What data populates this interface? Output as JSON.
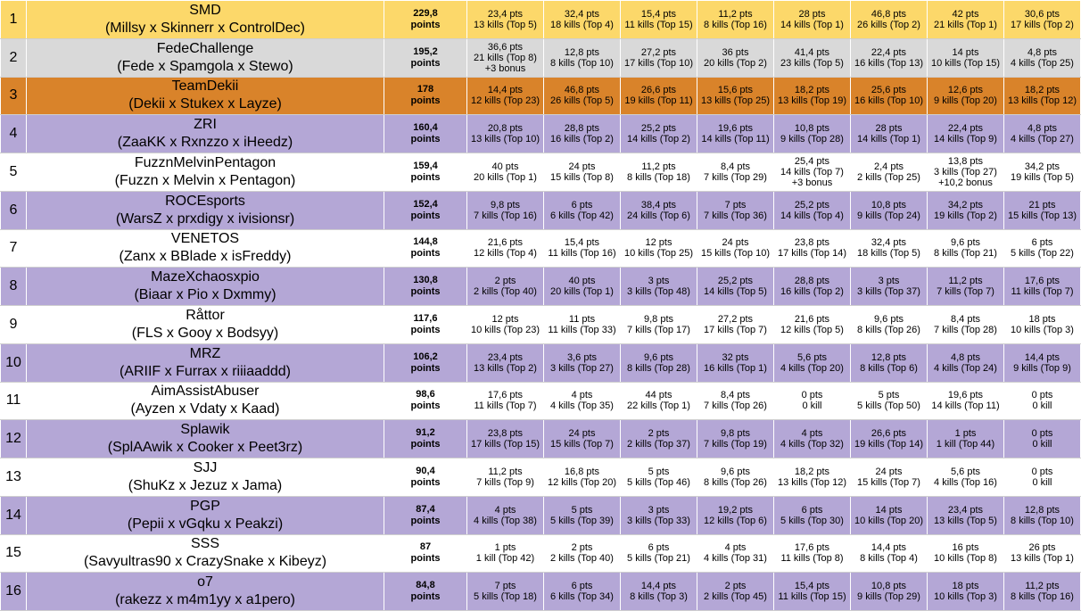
{
  "standings": [
    {
      "rank": "1",
      "name": "SMD",
      "players": "(Millsy x Skinnerr x ControlDec)",
      "total": "229,8",
      "total_label": "points",
      "style": "gold",
      "games": [
        {
          "pts": "23,4 pts",
          "kills": "13 kills (Top 5)"
        },
        {
          "pts": "32,4 pts",
          "kills": "18 kills (Top 4)"
        },
        {
          "pts": "15,4 pts",
          "kills": "11 kills (Top 15)"
        },
        {
          "pts": "11,2 pts",
          "kills": "8 kills (Top 16)"
        },
        {
          "pts": "28 pts",
          "kills": "14 kills (Top 1)"
        },
        {
          "pts": "46,8 pts",
          "kills": "26 kills (Top 2)"
        },
        {
          "pts": "42 pts",
          "kills": "21 kills (Top 1)"
        },
        {
          "pts": "30,6 pts",
          "kills": "17 kills (Top 2)"
        }
      ]
    },
    {
      "rank": "2",
      "name": "FedeChallenge",
      "players": "(Fede x Spamgola x Stewo)",
      "total": "195,2",
      "total_label": "points",
      "style": "silver",
      "games": [
        {
          "pts": "36,6 pts",
          "kills": "21 kills (Top 8)",
          "bonus": "+3 bonus"
        },
        {
          "pts": "12,8 pts",
          "kills": "8 kills (Top 10)"
        },
        {
          "pts": "27,2 pts",
          "kills": "17 kills (Top 10)"
        },
        {
          "pts": "36 pts",
          "kills": "20 kills (Top 2)"
        },
        {
          "pts": "41,4 pts",
          "kills": "23 kills (Top 5)"
        },
        {
          "pts": "22,4 pts",
          "kills": "16 kills (Top 13)"
        },
        {
          "pts": "14 pts",
          "kills": "10 kills (Top 15)"
        },
        {
          "pts": "4,8 pts",
          "kills": "4 kills (Top 25)"
        }
      ]
    },
    {
      "rank": "3",
      "name": "TeamDekii",
      "players": "(Dekii x Stukex x Layze)",
      "total": "178",
      "total_label": "points",
      "style": "bronze",
      "games": [
        {
          "pts": "14,4 pts",
          "kills": "12 kills (Top 23)"
        },
        {
          "pts": "46,8 pts",
          "kills": "26 kills (Top 5)"
        },
        {
          "pts": "26,6 pts",
          "kills": "19 kills (Top 11)"
        },
        {
          "pts": "15,6 pts",
          "kills": "13 kills (Top 25)"
        },
        {
          "pts": "18,2 pts",
          "kills": "13 kills (Top 19)"
        },
        {
          "pts": "25,6 pts",
          "kills": "16 kills (Top 10)"
        },
        {
          "pts": "12,6 pts",
          "kills": "9 kills (Top 20)"
        },
        {
          "pts": "18,2 pts",
          "kills": "13 kills (Top 12)"
        }
      ]
    },
    {
      "rank": "4",
      "name": "ZRI",
      "players": "(ZaaKK x Rxnzzo x iHeedz)",
      "total": "160,4",
      "total_label": "points",
      "style": "purple",
      "games": [
        {
          "pts": "20,8 pts",
          "kills": "13 kills (Top 10)"
        },
        {
          "pts": "28,8 pts",
          "kills": "16 kills (Top 2)"
        },
        {
          "pts": "25,2 pts",
          "kills": "14 kills (Top 2)"
        },
        {
          "pts": "19,6 pts",
          "kills": "14 kills (Top 11)"
        },
        {
          "pts": "10,8 pts",
          "kills": "9 kills (Top 28)"
        },
        {
          "pts": "28 pts",
          "kills": "14 kills (Top 1)"
        },
        {
          "pts": "22,4 pts",
          "kills": "14 kills (Top 9)"
        },
        {
          "pts": "4,8 pts",
          "kills": "4 kills (Top 27)"
        }
      ]
    },
    {
      "rank": "5",
      "name": "FuzznMelvinPentagon",
      "players": "(Fuzzn x Melvin x Pentagon)",
      "total": "159,4",
      "total_label": "points",
      "style": "white",
      "games": [
        {
          "pts": "40 pts",
          "kills": "20 kills (Top 1)"
        },
        {
          "pts": "24 pts",
          "kills": "15 kills (Top 8)"
        },
        {
          "pts": "11,2 pts",
          "kills": "8 kills (Top 18)"
        },
        {
          "pts": "8,4 pts",
          "kills": "7 kills (Top 29)"
        },
        {
          "pts": "25,4 pts",
          "kills": "14 kills (Top 7)",
          "bonus": "+3 bonus"
        },
        {
          "pts": "2,4 pts",
          "kills": "2 kills (Top 25)"
        },
        {
          "pts": "13,8 pts",
          "kills": "3 kills (Top 27)",
          "bonus": "+10,2 bonus"
        },
        {
          "pts": "34,2 pts",
          "kills": "19 kills (Top 5)"
        }
      ]
    },
    {
      "rank": "6",
      "name": "ROCEsports",
      "players": "(WarsZ x prxdigy x ivisionsr)",
      "total": "152,4",
      "total_label": "points",
      "style": "purple",
      "games": [
        {
          "pts": "9,8 pts",
          "kills": "7 kills (Top 16)"
        },
        {
          "pts": "6 pts",
          "kills": "6 kills (Top 42)"
        },
        {
          "pts": "38,4 pts",
          "kills": "24 kills (Top 6)"
        },
        {
          "pts": "7 pts",
          "kills": "7 kills (Top 36)"
        },
        {
          "pts": "25,2 pts",
          "kills": "14 kills (Top 4)"
        },
        {
          "pts": "10,8 pts",
          "kills": "9 kills (Top 24)"
        },
        {
          "pts": "34,2 pts",
          "kills": "19 kills (Top 2)"
        },
        {
          "pts": "21 pts",
          "kills": "15 kills (Top 13)"
        }
      ]
    },
    {
      "rank": "7",
      "name": "VENETOS",
      "players": "(Zanx x BBlade x isFreddy)",
      "total": "144,8",
      "total_label": "points",
      "style": "white",
      "games": [
        {
          "pts": "21,6 pts",
          "kills": "12 kills (Top 4)"
        },
        {
          "pts": "15,4 pts",
          "kills": "11 kills (Top 16)"
        },
        {
          "pts": "12 pts",
          "kills": "10 kills (Top 25)"
        },
        {
          "pts": "24 pts",
          "kills": "15 kills (Top 10)"
        },
        {
          "pts": "23,8 pts",
          "kills": "17 kills (Top 14)"
        },
        {
          "pts": "32,4 pts",
          "kills": "18 kills (Top 5)"
        },
        {
          "pts": "9,6 pts",
          "kills": "8 kills (Top 21)"
        },
        {
          "pts": "6 pts",
          "kills": "5 kills (Top 22)"
        }
      ]
    },
    {
      "rank": "8",
      "name": "MazeXchaosxpio",
      "players": "(Biaar x Pio x Dxmmy)",
      "total": "130,8",
      "total_label": "points",
      "style": "purple",
      "games": [
        {
          "pts": "2 pts",
          "kills": "2 kills (Top 40)"
        },
        {
          "pts": "40 pts",
          "kills": "20 kills (Top 1)"
        },
        {
          "pts": "3 pts",
          "kills": "3 kills (Top 48)"
        },
        {
          "pts": "25,2 pts",
          "kills": "14 kills (Top 5)"
        },
        {
          "pts": "28,8 pts",
          "kills": "16 kills (Top 2)"
        },
        {
          "pts": "3 pts",
          "kills": "3 kills (Top 37)"
        },
        {
          "pts": "11,2 pts",
          "kills": "7 kills (Top 7)"
        },
        {
          "pts": "17,6 pts",
          "kills": "11 kills (Top 7)"
        }
      ]
    },
    {
      "rank": "9",
      "name": "Råttor",
      "players": "(FLS x Gooy x Bodsyy)",
      "total": "117,6",
      "total_label": "points",
      "style": "white",
      "games": [
        {
          "pts": "12 pts",
          "kills": "10 kills (Top 23)"
        },
        {
          "pts": "11 pts",
          "kills": "11 kills (Top 33)"
        },
        {
          "pts": "9,8 pts",
          "kills": "7 kills (Top 17)"
        },
        {
          "pts": "27,2 pts",
          "kills": "17 kills (Top 7)"
        },
        {
          "pts": "21,6 pts",
          "kills": "12 kills (Top 5)"
        },
        {
          "pts": "9,6 pts",
          "kills": "8 kills (Top 26)"
        },
        {
          "pts": "8,4 pts",
          "kills": "7 kills (Top 28)"
        },
        {
          "pts": "18 pts",
          "kills": "10 kills (Top 3)"
        }
      ]
    },
    {
      "rank": "10",
      "name": "MRZ",
      "players": "(ARIIF x Furrax x riiiaaddd)",
      "total": "106,2",
      "total_label": "points",
      "style": "purple",
      "games": [
        {
          "pts": "23,4 pts",
          "kills": "13 kills (Top 2)"
        },
        {
          "pts": "3,6 pts",
          "kills": "3 kills (Top 27)"
        },
        {
          "pts": "9,6 pts",
          "kills": "8 kills (Top 28)"
        },
        {
          "pts": "32 pts",
          "kills": "16 kills (Top 1)"
        },
        {
          "pts": "5,6 pts",
          "kills": "4 kills (Top 20)"
        },
        {
          "pts": "12,8 pts",
          "kills": "8 kills (Top 6)"
        },
        {
          "pts": "4,8 pts",
          "kills": "4 kills (Top 24)"
        },
        {
          "pts": "14,4 pts",
          "kills": "9 kills (Top 9)"
        }
      ]
    },
    {
      "rank": "11",
      "name": "AimAssistAbuser",
      "players": "(Ayzen x Vdaty x Kaad)",
      "total": "98,6",
      "total_label": "points",
      "style": "white",
      "games": [
        {
          "pts": "17,6 pts",
          "kills": "11 kills (Top 7)"
        },
        {
          "pts": "4 pts",
          "kills": "4 kills (Top 35)"
        },
        {
          "pts": "44 pts",
          "kills": "22 kills (Top 1)"
        },
        {
          "pts": "8,4 pts",
          "kills": "7 kills (Top 26)"
        },
        {
          "pts": "0 pts",
          "kills": "0 kill"
        },
        {
          "pts": "5 pts",
          "kills": "5 kills (Top 50)"
        },
        {
          "pts": "19,6 pts",
          "kills": "14 kills (Top 11)"
        },
        {
          "pts": "0 pts",
          "kills": "0 kill"
        }
      ]
    },
    {
      "rank": "12",
      "name": "Splawik",
      "players": "(SplAAwik x Cooker x Peet3rz)",
      "total": "91,2",
      "total_label": "points",
      "style": "purple",
      "games": [
        {
          "pts": "23,8 pts",
          "kills": "17 kills (Top 15)"
        },
        {
          "pts": "24 pts",
          "kills": "15 kills (Top 7)"
        },
        {
          "pts": "2 pts",
          "kills": "2 kills (Top 37)"
        },
        {
          "pts": "9,8 pts",
          "kills": "7 kills (Top 19)"
        },
        {
          "pts": "4 pts",
          "kills": "4 kills (Top 32)"
        },
        {
          "pts": "26,6 pts",
          "kills": "19 kills (Top 14)"
        },
        {
          "pts": "1 pts",
          "kills": "1 kill (Top 44)"
        },
        {
          "pts": "0 pts",
          "kills": "0 kill"
        }
      ]
    },
    {
      "rank": "13",
      "name": "SJJ",
      "players": "(ShuKz x Jezuz x Jama)",
      "total": "90,4",
      "total_label": "points",
      "style": "white",
      "games": [
        {
          "pts": "11,2 pts",
          "kills": "7 kills (Top 9)"
        },
        {
          "pts": "16,8 pts",
          "kills": "12 kills (Top 20)"
        },
        {
          "pts": "5 pts",
          "kills": "5 kills (Top 46)"
        },
        {
          "pts": "9,6 pts",
          "kills": "8 kills (Top 26)"
        },
        {
          "pts": "18,2 pts",
          "kills": "13 kills (Top 12)"
        },
        {
          "pts": "24 pts",
          "kills": "15 kills (Top 7)"
        },
        {
          "pts": "5,6 pts",
          "kills": "4 kills (Top 16)"
        },
        {
          "pts": "0 pts",
          "kills": "0 kill"
        }
      ]
    },
    {
      "rank": "14",
      "name": "PGP",
      "players": "(Pepii x vGqku x Peakzi)",
      "total": "87,4",
      "total_label": "points",
      "style": "purple",
      "games": [
        {
          "pts": "4 pts",
          "kills": "4 kills (Top 38)"
        },
        {
          "pts": "5 pts",
          "kills": "5 kills (Top 39)"
        },
        {
          "pts": "3 pts",
          "kills": "3 kills (Top 33)"
        },
        {
          "pts": "19,2 pts",
          "kills": "12 kills (Top 6)"
        },
        {
          "pts": "6 pts",
          "kills": "5 kills (Top 30)"
        },
        {
          "pts": "14 pts",
          "kills": "10 kills (Top 20)"
        },
        {
          "pts": "23,4 pts",
          "kills": "13 kills (Top 5)"
        },
        {
          "pts": "12,8 pts",
          "kills": "8 kills (Top 10)"
        }
      ]
    },
    {
      "rank": "15",
      "name": "SSS",
      "players": "(Savyultras90 x CrazySnake x Kibeyz)",
      "total": "87",
      "total_label": "points",
      "style": "white",
      "games": [
        {
          "pts": "1 pts",
          "kills": "1 kill (Top 42)"
        },
        {
          "pts": "2 pts",
          "kills": "2 kills (Top 40)"
        },
        {
          "pts": "6 pts",
          "kills": "5 kills (Top 21)"
        },
        {
          "pts": "4 pts",
          "kills": "4 kills (Top 31)"
        },
        {
          "pts": "17,6 pts",
          "kills": "11 kills (Top 8)"
        },
        {
          "pts": "14,4 pts",
          "kills": "8 kills (Top 4)"
        },
        {
          "pts": "16 pts",
          "kills": "10 kills (Top 8)"
        },
        {
          "pts": "26 pts",
          "kills": "13 kills (Top 1)"
        }
      ]
    },
    {
      "rank": "16",
      "name": "o7",
      "players": "(rakezz x m4m1yy x a1pero)",
      "total": "84,8",
      "total_label": "points",
      "style": "purple",
      "games": [
        {
          "pts": "7 pts",
          "kills": "5 kills (Top 18)"
        },
        {
          "pts": "6 pts",
          "kills": "6 kills (Top 34)"
        },
        {
          "pts": "14,4 pts",
          "kills": "8 kills (Top 3)"
        },
        {
          "pts": "2 pts",
          "kills": "2 kills (Top 45)"
        },
        {
          "pts": "15,4 pts",
          "kills": "11 kills (Top 15)"
        },
        {
          "pts": "10,8 pts",
          "kills": "9 kills (Top 29)"
        },
        {
          "pts": "18 pts",
          "kills": "10 kills (Top 3)"
        },
        {
          "pts": "11,2 pts",
          "kills": "8 kills (Top 16)"
        }
      ]
    }
  ],
  "colors": {
    "gold": "#fcd86a",
    "silver": "#d9d9d9",
    "bronze": "#d9832a",
    "purple": "#b4a7d6",
    "white": "#ffffff"
  }
}
